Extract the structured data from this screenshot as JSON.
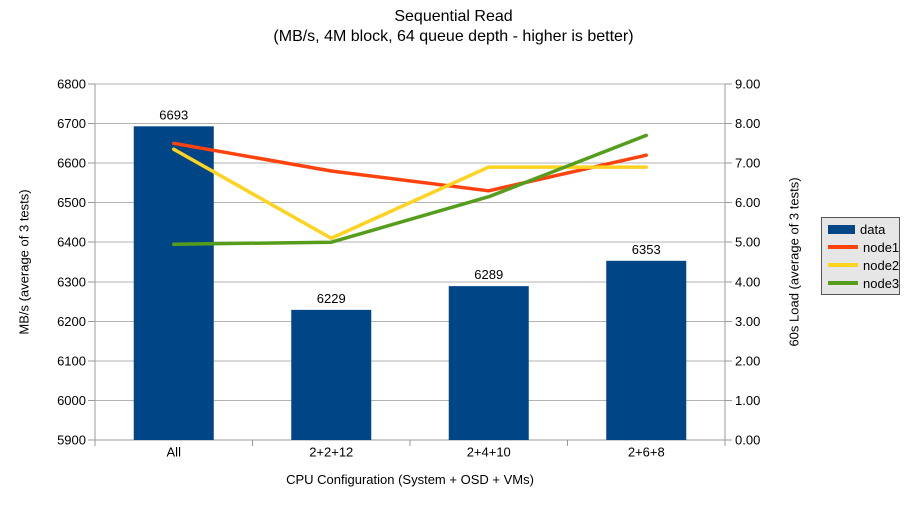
{
  "title": "Sequential Read",
  "subtitle": "(MB/s, 4M block, 64 queue depth - higher is better)",
  "chart_data": {
    "type": "bar+line",
    "categories": [
      "All",
      "2+2+12",
      "2+4+10",
      "2+6+8"
    ],
    "xlabel": "CPU Configuration (System + OSD + VMs)",
    "ylabel_left": "MB/s (average of 3 tests)",
    "ylabel_right": "60s Load (average of 3 tests)",
    "axis_left": {
      "min": 5900,
      "max": 6800,
      "step": 100
    },
    "axis_right": {
      "min": 0,
      "max": 9,
      "step": 1,
      "tick_format_decimals": 2
    },
    "bar_series": {
      "name": "data",
      "color": "#004586",
      "axis": "left",
      "values": [
        6693,
        6229,
        6289,
        6353
      ],
      "labels": [
        "6693",
        "6229",
        "6289",
        "6353"
      ]
    },
    "line_series": [
      {
        "name": "node1",
        "color": "#ff420e",
        "axis": "right",
        "values": [
          7.5,
          6.8,
          6.3,
          7.2
        ]
      },
      {
        "name": "node2",
        "color": "#ffd320",
        "axis": "right",
        "values": [
          7.35,
          5.1,
          6.9,
          6.9
        ]
      },
      {
        "name": "node3",
        "color": "#579d1c",
        "axis": "right",
        "values": [
          4.95,
          5.0,
          6.15,
          7.7
        ]
      }
    ],
    "legend": {
      "position": "right",
      "entries": [
        {
          "label": "data",
          "color": "#004586",
          "marker": "bar"
        },
        {
          "label": "node1",
          "color": "#ff420e",
          "marker": "line"
        },
        {
          "label": "node2",
          "color": "#ffd320",
          "marker": "line"
        },
        {
          "label": "node3",
          "color": "#579d1c",
          "marker": "line"
        }
      ]
    },
    "grid": {
      "horizontal": true,
      "color": "#b3b3b3"
    },
    "axis_color": "#9a9a9a",
    "legend_bg": "#e6e6e6",
    "legend_border": "#555555"
  }
}
